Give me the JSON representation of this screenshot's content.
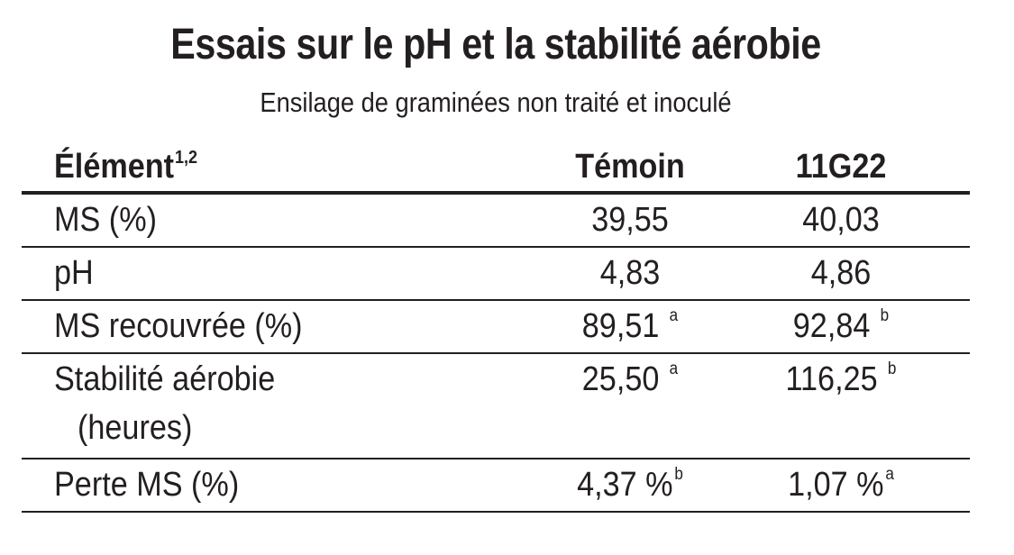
{
  "title": "Essais sur le pH et la stabilité aérobie",
  "subtitle": "Ensilage de graminées non traité et inoculé",
  "table": {
    "headers": {
      "element": "Élément",
      "element_sup": "1,2",
      "temoin": "Témoin",
      "hybrid": "11G22"
    },
    "rows": [
      {
        "label": "MS (%)",
        "temoin": "39,55",
        "temoin_sup": "",
        "hybrid": "40,03",
        "hybrid_sup": ""
      },
      {
        "label": "pH",
        "temoin": "4,83",
        "temoin_sup": "",
        "hybrid": "4,86",
        "hybrid_sup": ""
      },
      {
        "label": "MS recouvrée (%)",
        "temoin": "89,51",
        "temoin_sup": "a",
        "hybrid": "92,84",
        "hybrid_sup": "b"
      },
      {
        "label": "Stabilité aérobie",
        "label_line2": "(heures)",
        "temoin": "25,50",
        "temoin_sup": "a",
        "hybrid": "116,25",
        "hybrid_sup": "b"
      },
      {
        "label": "Perte MS (%)",
        "temoin": "4,37 %",
        "temoin_sup": "b",
        "hybrid": "1,07 %",
        "hybrid_sup": "a"
      }
    ]
  }
}
